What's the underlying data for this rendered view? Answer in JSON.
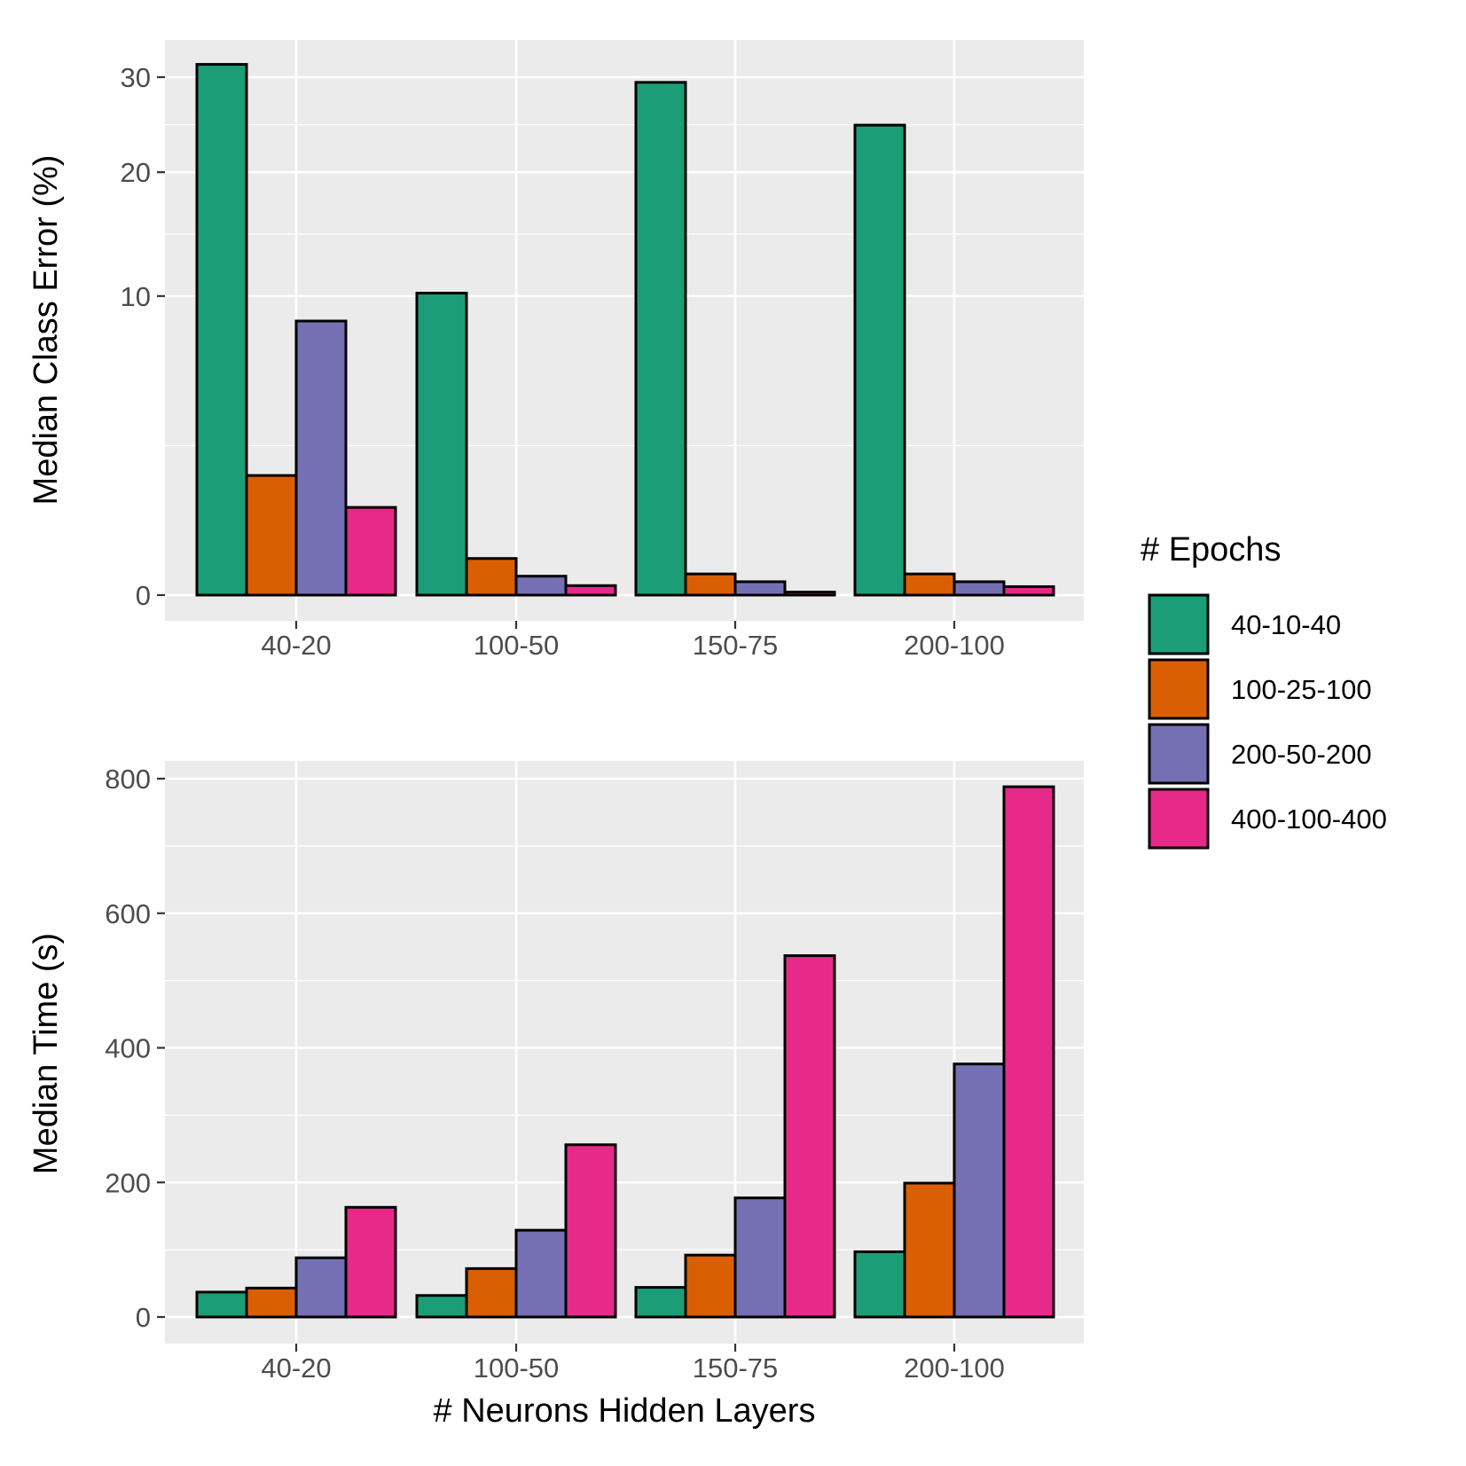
{
  "chart_data": [
    {
      "type": "bar",
      "ylabel": "Median Class Error (%)",
      "xlabel": "",
      "scale": "sqrt",
      "categories": [
        "40-20",
        "100-50",
        "150-75",
        "200-100"
      ],
      "ylim": [
        0,
        33.5
      ],
      "yticks": [
        0,
        10,
        20,
        30
      ],
      "grid": true,
      "series": [
        {
          "name": "40-10-40",
          "values": [
            31.5,
            10.2,
            29.4,
            24.7
          ]
        },
        {
          "name": "100-25-100",
          "values": [
            1.6,
            0.15,
            0.05,
            0.05
          ]
        },
        {
          "name": "200-50-200",
          "values": [
            8.4,
            0.04,
            0.02,
            0.02
          ]
        },
        {
          "name": "400-100-400",
          "values": [
            0.86,
            0.01,
            0.001,
            0.008
          ]
        }
      ]
    },
    {
      "type": "bar",
      "ylabel": "Median Time (s)",
      "xlabel": "# Neurons Hidden Layers",
      "scale": "linear",
      "categories": [
        "40-20",
        "100-50",
        "150-75",
        "200-100"
      ],
      "ylim": [
        -40,
        840
      ],
      "yticks": [
        0,
        200,
        400,
        600,
        800
      ],
      "grid": true,
      "series": [
        {
          "name": "40-10-40",
          "values": [
            37,
            32,
            44,
            97
          ]
        },
        {
          "name": "100-25-100",
          "values": [
            43,
            72,
            92,
            199
          ]
        },
        {
          "name": "200-50-200",
          "values": [
            88,
            129,
            177,
            376
          ]
        },
        {
          "name": "400-100-400",
          "values": [
            163,
            256,
            537,
            788
          ]
        }
      ]
    }
  ],
  "legend": {
    "title": "# Epochs",
    "position": "right",
    "items": [
      {
        "label": "40-10-40",
        "color": "#1b9e77"
      },
      {
        "label": "100-25-100",
        "color": "#d95f02"
      },
      {
        "label": "200-50-200",
        "color": "#7570b3"
      },
      {
        "label": "400-100-400",
        "color": "#e7298a"
      }
    ]
  },
  "colors": {
    "panel_background": "#ebebeb",
    "grid_major": "#ffffff",
    "bar_outline": "#000000"
  }
}
